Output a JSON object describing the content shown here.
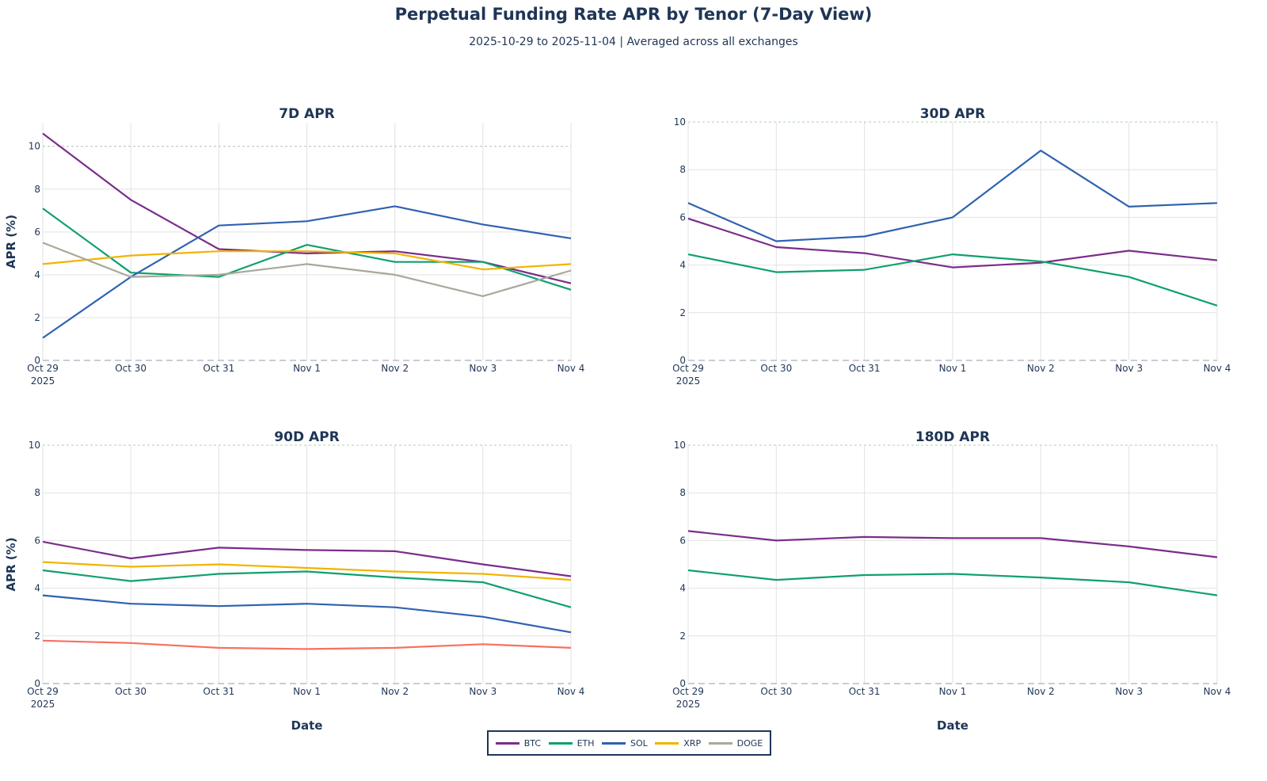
{
  "title": "Perpetual Funding Rate APR by Tenor (7-Day View)",
  "subtitle": "2025-10-29 to 2025-11-04 | Averaged across all exchanges",
  "legend": [
    {
      "name": "BTC",
      "color": "#7b2d8b"
    },
    {
      "name": "ETH",
      "color": "#0fa06e"
    },
    {
      "name": "SOL",
      "color": "#2f62b0"
    },
    {
      "name": "XRP",
      "color": "#f2b400"
    },
    {
      "name": "DOGE",
      "color": "#a8a89c"
    }
  ],
  "chart_data": [
    {
      "type": "line",
      "title": "7D APR",
      "ylabel": "APR (%)",
      "xlabel": "",
      "categories": [
        "Oct 29",
        "Oct 30",
        "Oct 31",
        "Nov 1",
        "Nov 2",
        "Nov 3",
        "Nov 4"
      ],
      "first_tick_year": "2025",
      "ylim": [
        0,
        11.1
      ],
      "yticks": [
        0,
        2,
        4,
        6,
        8,
        10
      ],
      "grid": true,
      "series": [
        {
          "name": "BTC",
          "color": "#7b2d8b",
          "values": [
            10.6,
            7.5,
            5.2,
            5.0,
            5.1,
            4.6,
            3.6
          ]
        },
        {
          "name": "ETH",
          "color": "#0fa06e",
          "values": [
            7.1,
            4.1,
            3.9,
            5.4,
            4.6,
            4.6,
            3.3
          ]
        },
        {
          "name": "SOL",
          "color": "#2f62b0",
          "values": [
            1.05,
            3.9,
            6.3,
            6.5,
            7.2,
            6.35,
            5.7
          ]
        },
        {
          "name": "XRP",
          "color": "#f2b400",
          "values": [
            4.5,
            4.9,
            5.1,
            5.1,
            5.0,
            4.25,
            4.5
          ]
        },
        {
          "name": "DOGE",
          "color": "#a8a89c",
          "values": [
            5.5,
            3.9,
            4.0,
            4.5,
            4.0,
            3.0,
            4.2
          ]
        }
      ]
    },
    {
      "type": "line",
      "title": "30D APR",
      "ylabel": "",
      "xlabel": "",
      "categories": [
        "Oct 29",
        "Oct 30",
        "Oct 31",
        "Nov 1",
        "Nov 2",
        "Nov 3",
        "Nov 4"
      ],
      "first_tick_year": "2025",
      "ylim": [
        0,
        10
      ],
      "yticks": [
        0,
        2,
        4,
        6,
        8,
        10
      ],
      "grid": true,
      "series": [
        {
          "name": "SOL",
          "color": "#2f62b0",
          "values": [
            6.6,
            5.0,
            5.2,
            6.0,
            8.8,
            6.45,
            6.6
          ]
        },
        {
          "name": "BTC",
          "color": "#7b2d8b",
          "values": [
            5.95,
            4.75,
            4.5,
            3.9,
            4.1,
            4.6,
            4.2
          ]
        },
        {
          "name": "ETH",
          "color": "#0fa06e",
          "values": [
            4.45,
            3.7,
            3.8,
            4.45,
            4.15,
            3.5,
            2.3
          ]
        }
      ]
    },
    {
      "type": "line",
      "title": "90D APR",
      "ylabel": "APR (%)",
      "xlabel": "Date",
      "categories": [
        "Oct 29",
        "Oct 30",
        "Oct 31",
        "Nov 1",
        "Nov 2",
        "Nov 3",
        "Nov 4"
      ],
      "first_tick_year": "2025",
      "ylim": [
        0,
        10
      ],
      "yticks": [
        0,
        2,
        4,
        6,
        8,
        10
      ],
      "grid": true,
      "series": [
        {
          "name": "BTC",
          "color": "#7b2d8b",
          "values": [
            5.95,
            5.25,
            5.7,
            5.6,
            5.55,
            5.0,
            4.5
          ]
        },
        {
          "name": "XRP",
          "color": "#f2b400",
          "values": [
            5.1,
            4.9,
            5.0,
            4.85,
            4.7,
            4.6,
            4.35
          ]
        },
        {
          "name": "ETH",
          "color": "#0fa06e",
          "values": [
            4.75,
            4.3,
            4.6,
            4.7,
            4.45,
            4.25,
            3.2
          ]
        },
        {
          "name": "SOL",
          "color": "#2f62b0",
          "values": [
            3.7,
            3.35,
            3.25,
            3.35,
            3.2,
            2.8,
            2.15
          ]
        },
        {
          "color": "#f87060",
          "values": [
            1.8,
            1.7,
            1.5,
            1.45,
            1.5,
            1.65,
            1.5
          ]
        }
      ]
    },
    {
      "type": "line",
      "title": "180D APR",
      "ylabel": "",
      "xlabel": "Date",
      "categories": [
        "Oct 29",
        "Oct 30",
        "Oct 31",
        "Nov 1",
        "Nov 2",
        "Nov 3",
        "Nov 4"
      ],
      "first_tick_year": "2025",
      "ylim": [
        0,
        10
      ],
      "yticks": [
        0,
        2,
        4,
        6,
        8,
        10
      ],
      "grid": true,
      "series": [
        {
          "name": "BTC",
          "color": "#7b2d8b",
          "values": [
            6.4,
            6.0,
            6.15,
            6.1,
            6.1,
            5.75,
            5.3
          ]
        },
        {
          "name": "ETH",
          "color": "#0fa06e",
          "values": [
            4.75,
            4.35,
            4.55,
            4.6,
            4.45,
            4.25,
            3.7
          ]
        }
      ]
    }
  ]
}
